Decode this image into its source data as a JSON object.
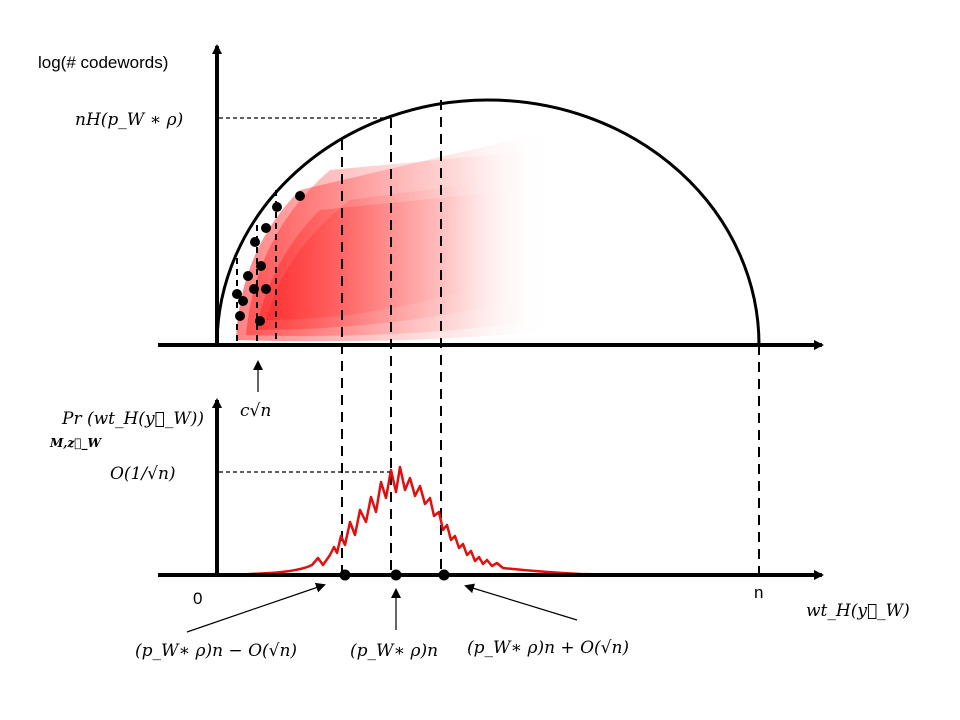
{
  "top_panel": {
    "y_axis_label": "log(# codewords)",
    "peak_label": "nH(p_W ∗ ρ)",
    "threshold_label": "c√n"
  },
  "bottom_panel": {
    "y_axis_label": "Pr (wt_H(y⃗_W))",
    "y_axis_sub": "M,z⃗_W",
    "peak_label": "O(1/√n)",
    "origin_label": "0",
    "n_label": "n",
    "x_axis_label": "wt_H(y⃗_W)",
    "marker_left_label": "(p_W∗ ρ)n − O(√n)",
    "marker_center_label": "(p_W∗ ρ)n",
    "marker_right_label": "(p_W∗ ρ)n + O(√n)"
  },
  "colors": {
    "axis": "#000000",
    "cloud": "#ff1a1a",
    "distribution_curve": "#e01010"
  }
}
